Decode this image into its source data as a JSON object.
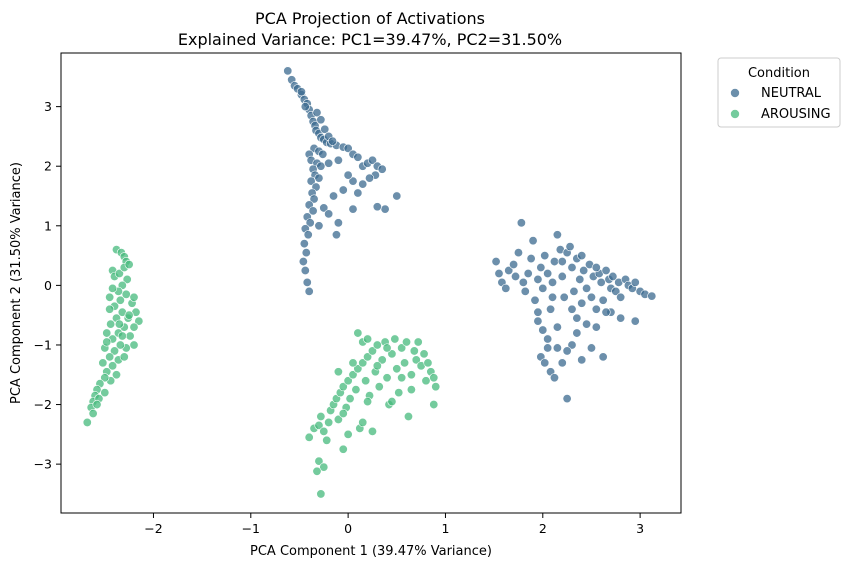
{
  "chart_data": {
    "type": "scatter",
    "title": "PCA Projection of Activations",
    "subtitle": "Explained Variance: PC1=39.47%, PC2=31.50%",
    "xlabel": "PCA Component 1 (39.47% Variance)",
    "ylabel": "PCA Component 2 (31.50% Variance)",
    "xlim": [
      -2.95,
      3.42
    ],
    "ylim": [
      -3.82,
      3.9
    ],
    "xticks": [
      -2,
      -1,
      0,
      1,
      2,
      3
    ],
    "yticks": [
      -3,
      -2,
      -1,
      0,
      1,
      2,
      3
    ],
    "grid": false,
    "legend": {
      "title": "Condition",
      "placement": "outside-top-right"
    },
    "series": [
      {
        "name": "NEUTRAL",
        "color": "#3b6a8f",
        "points": [
          [
            -0.62,
            3.6
          ],
          [
            -0.58,
            3.45
          ],
          [
            -0.55,
            3.35
          ],
          [
            -0.52,
            3.3
          ],
          [
            -0.48,
            3.2
          ],
          [
            -0.45,
            3.12
          ],
          [
            -0.42,
            3.05
          ],
          [
            -0.4,
            2.95
          ],
          [
            -0.38,
            2.85
          ],
          [
            -0.36,
            2.75
          ],
          [
            -0.34,
            2.68
          ],
          [
            -0.33,
            2.6
          ],
          [
            -0.3,
            2.55
          ],
          [
            -0.28,
            2.48
          ],
          [
            -0.25,
            2.45
          ],
          [
            -0.22,
            2.4
          ],
          [
            -0.18,
            2.38
          ],
          [
            -0.12,
            2.35
          ],
          [
            -0.05,
            2.32
          ],
          [
            0.0,
            2.3
          ],
          [
            -0.35,
            2.3
          ],
          [
            -0.3,
            2.25
          ],
          [
            -0.26,
            2.2
          ],
          [
            -0.4,
            2.2
          ],
          [
            -0.38,
            2.1
          ],
          [
            -0.32,
            2.05
          ],
          [
            -0.28,
            2.0
          ],
          [
            -0.36,
            1.95
          ],
          [
            -0.34,
            1.85
          ],
          [
            -0.3,
            1.8
          ],
          [
            -0.38,
            1.75
          ],
          [
            -0.33,
            1.65
          ],
          [
            -0.37,
            1.55
          ],
          [
            -0.35,
            1.45
          ],
          [
            -0.4,
            1.35
          ],
          [
            -0.36,
            1.25
          ],
          [
            -0.42,
            1.15
          ],
          [
            -0.39,
            1.05
          ],
          [
            -0.44,
            0.95
          ],
          [
            -0.41,
            0.85
          ],
          [
            -0.45,
            0.7
          ],
          [
            -0.43,
            0.55
          ],
          [
            -0.46,
            0.4
          ],
          [
            -0.44,
            0.25
          ],
          [
            -0.42,
            0.05
          ],
          [
            -0.4,
            -0.1
          ],
          [
            -0.2,
            2.05
          ],
          [
            -0.1,
            2.1
          ],
          [
            0.05,
            2.2
          ],
          [
            0.1,
            2.15
          ],
          [
            0.15,
            2.0
          ],
          [
            0.2,
            2.05
          ],
          [
            0.25,
            2.1
          ],
          [
            0.3,
            2.0
          ],
          [
            0.35,
            1.95
          ],
          [
            0.28,
            1.85
          ],
          [
            0.22,
            1.8
          ],
          [
            0.15,
            1.7
          ],
          [
            0.05,
            1.75
          ],
          [
            0.0,
            1.85
          ],
          [
            -0.05,
            1.6
          ],
          [
            0.1,
            1.55
          ],
          [
            0.5,
            1.5
          ],
          [
            0.38,
            1.28
          ],
          [
            0.3,
            1.32
          ],
          [
            0.05,
            1.28
          ],
          [
            -0.15,
            1.5
          ],
          [
            -0.1,
            1.05
          ],
          [
            -0.12,
            0.85
          ],
          [
            -0.25,
            1.3
          ],
          [
            -0.2,
            1.2
          ],
          [
            -0.3,
            1.0
          ],
          [
            -0.48,
            3.25
          ],
          [
            -0.44,
            3.0
          ],
          [
            -0.32,
            2.9
          ],
          [
            -0.28,
            2.78
          ],
          [
            -0.24,
            2.62
          ],
          [
            -0.2,
            2.5
          ],
          [
            -0.16,
            2.42
          ],
          [
            1.52,
            0.4
          ],
          [
            1.55,
            0.2
          ],
          [
            1.58,
            0.05
          ],
          [
            1.62,
            -0.05
          ],
          [
            1.65,
            0.25
          ],
          [
            1.7,
            0.35
          ],
          [
            1.72,
            0.15
          ],
          [
            1.75,
            0.55
          ],
          [
            1.78,
            1.05
          ],
          [
            1.8,
            0.05
          ],
          [
            1.82,
            -0.1
          ],
          [
            1.85,
            0.2
          ],
          [
            1.88,
            0.45
          ],
          [
            1.9,
            0.75
          ],
          [
            1.92,
            -0.25
          ],
          [
            1.95,
            0.1
          ],
          [
            1.98,
            0.3
          ],
          [
            2.0,
            -0.05
          ],
          [
            2.02,
            0.5
          ],
          [
            2.05,
            0.2
          ],
          [
            2.08,
            -0.4
          ],
          [
            2.1,
            0.05
          ],
          [
            2.12,
            0.4
          ],
          [
            2.15,
            0.85
          ],
          [
            2.18,
            0.6
          ],
          [
            2.2,
            0.15
          ],
          [
            2.22,
            -0.2
          ],
          [
            2.25,
            0.55
          ],
          [
            2.28,
            0.65
          ],
          [
            2.3,
            0.3
          ],
          [
            2.32,
            -0.1
          ],
          [
            2.35,
            0.45
          ],
          [
            2.38,
            0.1
          ],
          [
            2.4,
            -0.3
          ],
          [
            2.42,
            0.25
          ],
          [
            2.45,
            -0.05
          ],
          [
            2.48,
            0.35
          ],
          [
            2.5,
            -0.2
          ],
          [
            2.52,
            0.15
          ],
          [
            2.55,
            -0.4
          ],
          [
            2.58,
            0.2
          ],
          [
            2.6,
            0.05
          ],
          [
            2.62,
            -0.25
          ],
          [
            2.65,
            0.25
          ],
          [
            2.68,
            0.1
          ],
          [
            2.7,
            -0.05
          ],
          [
            2.72,
            0.15
          ],
          [
            2.75,
            -0.1
          ],
          [
            2.78,
            0.05
          ],
          [
            2.8,
            -0.2
          ],
          [
            2.85,
            0.1
          ],
          [
            2.88,
            0.0
          ],
          [
            2.92,
            -0.05
          ],
          [
            2.95,
            0.05
          ],
          [
            3.0,
            -0.1
          ],
          [
            3.05,
            -0.15
          ],
          [
            3.12,
            -0.18
          ],
          [
            2.95,
            -0.6
          ],
          [
            2.8,
            -0.55
          ],
          [
            2.7,
            -0.45
          ],
          [
            2.55,
            -0.7
          ],
          [
            2.45,
            -0.65
          ],
          [
            2.35,
            -0.8
          ],
          [
            2.3,
            -1.0
          ],
          [
            2.25,
            -1.1
          ],
          [
            2.15,
            -1.05
          ],
          [
            2.05,
            -0.9
          ],
          [
            2.0,
            -0.75
          ],
          [
            1.95,
            -0.6
          ],
          [
            1.98,
            -1.2
          ],
          [
            2.02,
            -1.3
          ],
          [
            2.08,
            -1.45
          ],
          [
            2.12,
            -1.55
          ],
          [
            2.2,
            -1.3
          ],
          [
            2.25,
            -1.9
          ],
          [
            2.4,
            -1.25
          ],
          [
            2.5,
            -1.05
          ],
          [
            2.62,
            -1.2
          ],
          [
            2.1,
            -0.2
          ],
          [
            2.3,
            -0.4
          ],
          [
            2.4,
            0.5
          ],
          [
            2.2,
            0.4
          ],
          [
            1.95,
            -0.45
          ],
          [
            2.55,
            0.3
          ],
          [
            2.15,
            -0.7
          ],
          [
            2.35,
            -0.55
          ],
          [
            2.65,
            -0.45
          ],
          [
            2.05,
            -1.05
          ]
        ]
      },
      {
        "name": "AROUSING",
        "color": "#45b97c",
        "points": [
          [
            -2.38,
            0.6
          ],
          [
            -2.33,
            0.55
          ],
          [
            -2.3,
            0.48
          ],
          [
            -2.28,
            0.4
          ],
          [
            -2.42,
            0.25
          ],
          [
            -2.4,
            0.15
          ],
          [
            -2.35,
            0.2
          ],
          [
            -2.3,
            0.3
          ],
          [
            -2.25,
            0.35
          ],
          [
            -2.27,
            0.1
          ],
          [
            -2.32,
            0.0
          ],
          [
            -2.36,
            -0.1
          ],
          [
            -2.42,
            -0.05
          ],
          [
            -2.45,
            -0.2
          ],
          [
            -2.4,
            -0.35
          ],
          [
            -2.34,
            -0.25
          ],
          [
            -2.28,
            -0.15
          ],
          [
            -2.22,
            -0.3
          ],
          [
            -2.18,
            -0.45
          ],
          [
            -2.15,
            -0.6
          ],
          [
            -2.2,
            -0.7
          ],
          [
            -2.26,
            -0.55
          ],
          [
            -2.32,
            -0.45
          ],
          [
            -2.38,
            -0.55
          ],
          [
            -2.44,
            -0.65
          ],
          [
            -2.48,
            -0.8
          ],
          [
            -2.42,
            -0.9
          ],
          [
            -2.36,
            -0.8
          ],
          [
            -2.3,
            -0.7
          ],
          [
            -2.24,
            -0.85
          ],
          [
            -2.2,
            -1.0
          ],
          [
            -2.28,
            -1.05
          ],
          [
            -2.34,
            -1.0
          ],
          [
            -2.4,
            -1.1
          ],
          [
            -2.45,
            -1.2
          ],
          [
            -2.5,
            -1.05
          ],
          [
            -2.52,
            -1.3
          ],
          [
            -2.48,
            -1.45
          ],
          [
            -2.42,
            -1.35
          ],
          [
            -2.36,
            -1.25
          ],
          [
            -2.3,
            -1.2
          ],
          [
            -2.38,
            -1.5
          ],
          [
            -2.44,
            -1.6
          ],
          [
            -2.5,
            -1.55
          ],
          [
            -2.55,
            -1.65
          ],
          [
            -2.58,
            -1.75
          ],
          [
            -2.6,
            -1.85
          ],
          [
            -2.62,
            -1.95
          ],
          [
            -2.56,
            -1.9
          ],
          [
            -2.5,
            -1.8
          ],
          [
            -2.64,
            -2.05
          ],
          [
            -2.58,
            -2.0
          ],
          [
            -2.68,
            -2.3
          ],
          [
            -2.62,
            -2.15
          ],
          [
            -2.45,
            -0.4
          ],
          [
            -2.25,
            -0.5
          ],
          [
            -2.2,
            -0.2
          ],
          [
            -2.35,
            -0.65
          ],
          [
            -2.48,
            -0.95
          ],
          [
            -2.32,
            -0.85
          ],
          [
            -0.4,
            -2.55
          ],
          [
            -0.35,
            -2.4
          ],
          [
            -0.3,
            -2.35
          ],
          [
            -0.28,
            -2.2
          ],
          [
            -0.25,
            -2.45
          ],
          [
            -0.22,
            -2.6
          ],
          [
            -0.2,
            -2.3
          ],
          [
            -0.18,
            -2.1
          ],
          [
            -0.15,
            -2.0
          ],
          [
            -0.12,
            -1.9
          ],
          [
            -0.1,
            -2.25
          ],
          [
            -0.08,
            -1.8
          ],
          [
            -0.05,
            -1.7
          ],
          [
            -0.02,
            -2.05
          ],
          [
            0.0,
            -1.6
          ],
          [
            0.02,
            -1.9
          ],
          [
            0.05,
            -1.5
          ],
          [
            0.08,
            -1.75
          ],
          [
            0.1,
            -1.4
          ],
          [
            0.12,
            -2.4
          ],
          [
            0.15,
            -1.3
          ],
          [
            0.18,
            -1.6
          ],
          [
            0.2,
            -1.2
          ],
          [
            0.22,
            -1.85
          ],
          [
            0.25,
            -1.1
          ],
          [
            0.28,
            -1.45
          ],
          [
            0.3,
            -1.0
          ],
          [
            0.32,
            -1.7
          ],
          [
            0.35,
            -1.25
          ],
          [
            0.38,
            -0.95
          ],
          [
            0.4,
            -1.55
          ],
          [
            0.42,
            -2.0
          ],
          [
            0.45,
            -1.15
          ],
          [
            0.48,
            -0.9
          ],
          [
            0.5,
            -1.4
          ],
          [
            0.52,
            -1.8
          ],
          [
            0.55,
            -1.05
          ],
          [
            0.58,
            -1.3
          ],
          [
            0.6,
            -0.95
          ],
          [
            0.62,
            -2.2
          ],
          [
            0.65,
            -1.5
          ],
          [
            0.68,
            -1.1
          ],
          [
            0.7,
            -1.25
          ],
          [
            0.72,
            -0.95
          ],
          [
            0.75,
            -1.35
          ],
          [
            0.78,
            -1.15
          ],
          [
            0.8,
            -1.6
          ],
          [
            0.82,
            -1.3
          ],
          [
            0.85,
            -1.45
          ],
          [
            0.88,
            -1.55
          ],
          [
            0.9,
            -1.7
          ],
          [
            0.88,
            -2.0
          ],
          [
            -0.05,
            -2.75
          ],
          [
            -0.3,
            -2.95
          ],
          [
            -0.25,
            -3.05
          ],
          [
            -0.32,
            -3.12
          ],
          [
            -0.28,
            -3.5
          ],
          [
            0.0,
            -2.5
          ],
          [
            0.15,
            -2.3
          ],
          [
            0.25,
            -2.45
          ],
          [
            0.05,
            -1.3
          ],
          [
            -0.1,
            -1.45
          ],
          [
            0.15,
            -0.95
          ],
          [
            0.1,
            -0.8
          ],
          [
            0.2,
            -0.9
          ],
          [
            0.3,
            -1.35
          ],
          [
            0.4,
            -1.05
          ],
          [
            0.55,
            -1.55
          ],
          [
            0.65,
            -1.75
          ],
          [
            0.45,
            -1.95
          ],
          [
            -0.05,
            -2.15
          ],
          [
            0.2,
            -1.95
          ]
        ]
      }
    ]
  }
}
